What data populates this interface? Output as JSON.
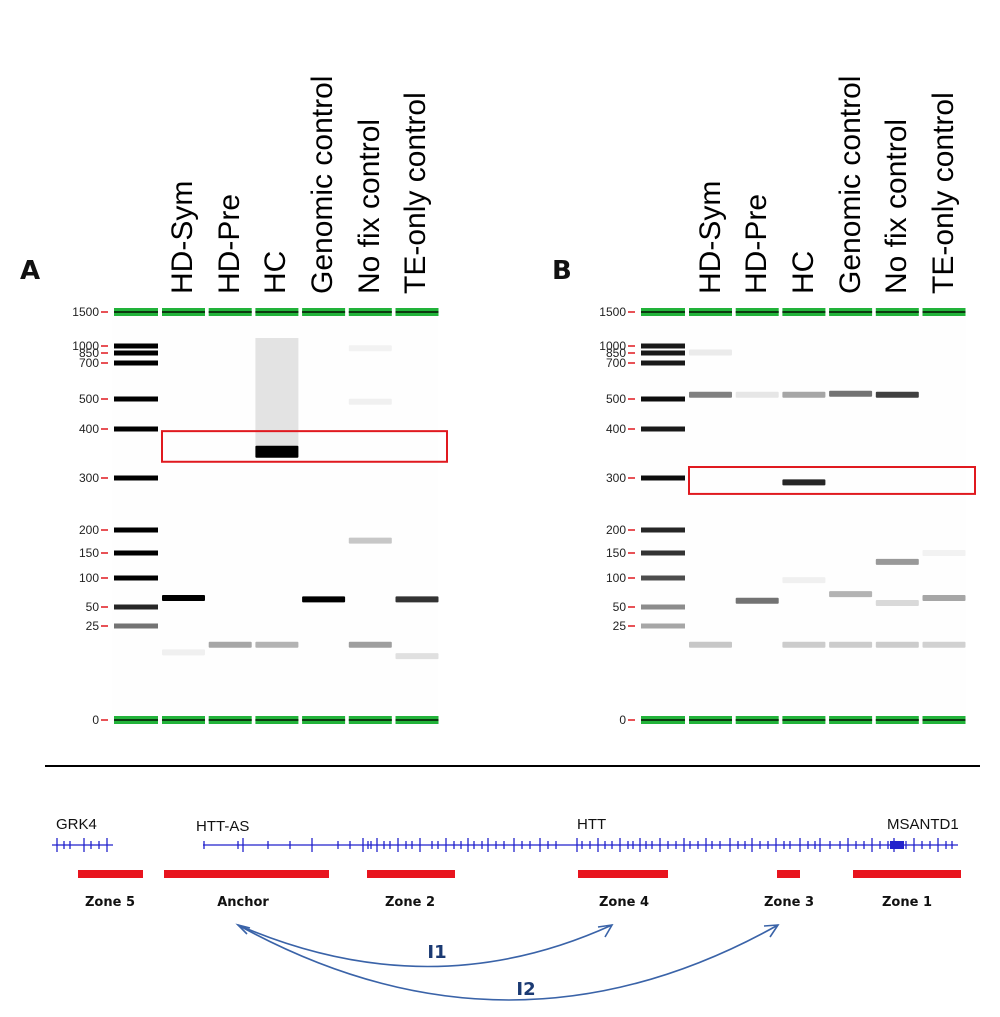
{
  "lanes": [
    "HD-Sym",
    "HD-Pre",
    "HC",
    "Genomic control",
    "No fix control",
    "TE-only control"
  ],
  "ladder": [
    "1500",
    "1000",
    "850",
    "700",
    "500",
    "400",
    "300",
    "200",
    "150",
    "100",
    "50",
    "25",
    "0"
  ],
  "panels": [
    {
      "letter": "A",
      "bands": [
        {
          "lane": 0,
          "size": 62,
          "intensity": 1.0
        },
        {
          "lane": 0,
          "size": 18,
          "intensity": 0.06
        },
        {
          "lane": 1,
          "size": 20,
          "intensity": 0.35
        },
        {
          "lane": 2,
          "size": 350,
          "intensity": 1.0
        },
        {
          "lane": 2,
          "size": 20,
          "intensity": 0.3
        },
        {
          "lane": 3,
          "size": 60,
          "intensity": 1.0
        },
        {
          "lane": 4,
          "size": 175,
          "intensity": 0.22
        },
        {
          "lane": 4,
          "size": 20,
          "intensity": 0.38
        },
        {
          "lane": 4,
          "size": 950,
          "intensity": 0.05
        },
        {
          "lane": 4,
          "size": 490,
          "intensity": 0.06
        },
        {
          "lane": 5,
          "size": 60,
          "intensity": 0.8
        },
        {
          "lane": 5,
          "size": 17,
          "intensity": 0.12
        }
      ],
      "smears": [
        {
          "lane": 2,
          "from": 1100,
          "to": 340,
          "intensity": 0.12
        }
      ],
      "highlight": {
        "size_low": 330,
        "size_high": 395
      }
    },
    {
      "letter": "B",
      "bands": [
        {
          "lane": 0,
          "size": 520,
          "intensity": 0.5
        },
        {
          "lane": 0,
          "size": 20,
          "intensity": 0.22
        },
        {
          "lane": 0,
          "size": 860,
          "intensity": 0.08
        },
        {
          "lane": 1,
          "size": 58,
          "intensity": 0.55
        },
        {
          "lane": 1,
          "size": 520,
          "intensity": 0.1
        },
        {
          "lane": 2,
          "size": 290,
          "intensity": 0.85
        },
        {
          "lane": 2,
          "size": 520,
          "intensity": 0.35
        },
        {
          "lane": 2,
          "size": 20,
          "intensity": 0.2
        },
        {
          "lane": 2,
          "size": 95,
          "intensity": 0.06
        },
        {
          "lane": 3,
          "size": 525,
          "intensity": 0.55
        },
        {
          "lane": 3,
          "size": 68,
          "intensity": 0.3
        },
        {
          "lane": 3,
          "size": 20,
          "intensity": 0.2
        },
        {
          "lane": 4,
          "size": 520,
          "intensity": 0.75
        },
        {
          "lane": 4,
          "size": 130,
          "intensity": 0.4
        },
        {
          "lane": 4,
          "size": 55,
          "intensity": 0.15
        },
        {
          "lane": 4,
          "size": 20,
          "intensity": 0.2
        },
        {
          "lane": 5,
          "size": 62,
          "intensity": 0.35
        },
        {
          "lane": 5,
          "size": 20,
          "intensity": 0.18
        },
        {
          "lane": 5,
          "size": 150,
          "intensity": 0.05
        }
      ],
      "smears": [],
      "highlight": {
        "size_low": 265,
        "size_high": 320
      }
    }
  ],
  "genes": [
    "GRK4",
    "HTT-AS",
    "HTT",
    "MSANTD1"
  ],
  "zones": [
    "Zone 5",
    "Anchor",
    "Zone 2",
    "Zone 4",
    "Zone 3",
    "Zone 1"
  ],
  "interactions": [
    "I1",
    "I2"
  ],
  "colors": {
    "marker": "#22b33a",
    "highlight": "#e0191f",
    "zone_bar": "#e8141e",
    "gene_track": "#2222cc",
    "arc": "#3a63a8",
    "tick": "#e0191f"
  }
}
